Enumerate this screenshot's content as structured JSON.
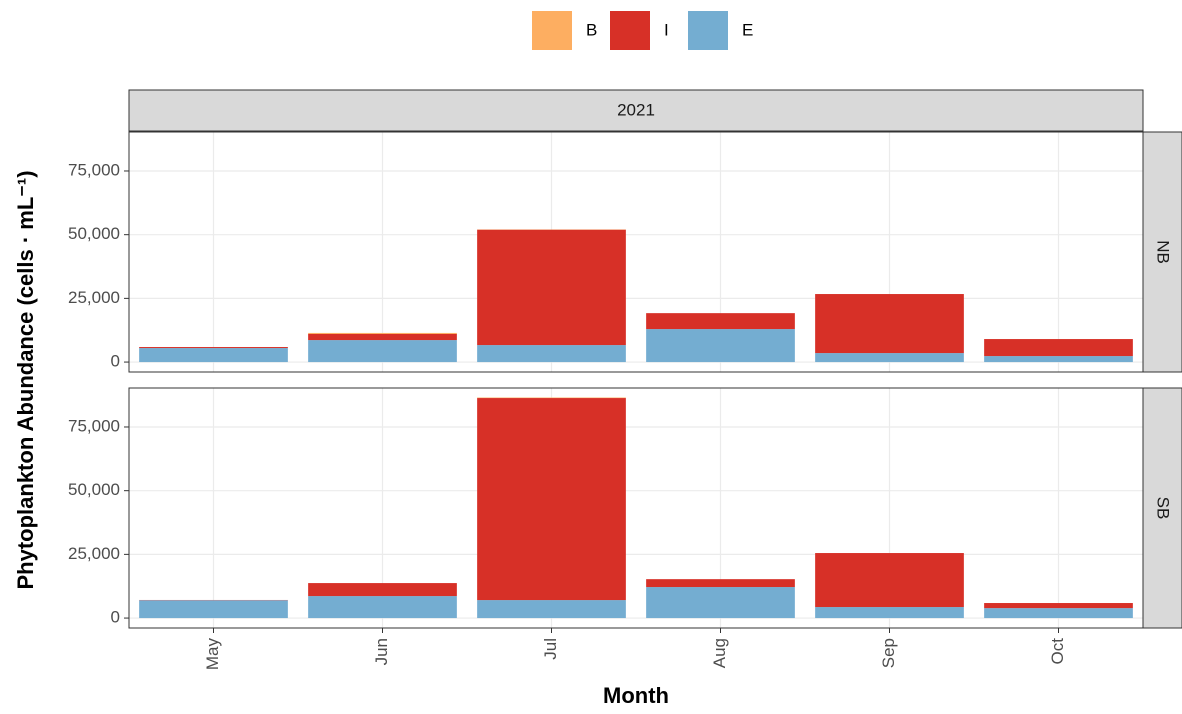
{
  "chart_data": {
    "type": "bar",
    "stacked": true,
    "strip": "2021",
    "xlabel": "Month",
    "ylabel": "Phytoplankton Abundance (cells · mL⁻¹)",
    "categories": [
      "May",
      "Jun",
      "Jul",
      "Aug",
      "Sep",
      "Oct"
    ],
    "ylim": [
      -3900,
      90300
    ],
    "yticks": [
      {
        "value": 0,
        "label": "0"
      },
      {
        "value": 25000,
        "label": "25,000"
      },
      {
        "value": 50000,
        "label": "50,000"
      },
      {
        "value": 75000,
        "label": "75,000"
      }
    ],
    "grid": true,
    "legend": "top",
    "series": [
      {
        "name": "B",
        "color": "#fdae61"
      },
      {
        "name": "I",
        "color": "#d73027"
      },
      {
        "name": "E",
        "color": "#74add1"
      }
    ],
    "panels": [
      {
        "label": "NB",
        "values": [
          [
            0,
            400,
            100,
            0,
            0,
            0
          ],
          [
            400,
            2400,
            45300,
            6250,
            23170,
            6680
          ],
          [
            5500,
            8630,
            6670,
            12950,
            3530,
            2350
          ]
        ]
      },
      {
        "label": "SB",
        "values": [
          [
            0,
            0,
            200,
            0,
            0,
            0
          ],
          [
            100,
            5100,
            79300,
            3100,
            21200,
            2000
          ],
          [
            7000,
            8630,
            7060,
            12170,
            4320,
            3900
          ]
        ]
      }
    ]
  }
}
